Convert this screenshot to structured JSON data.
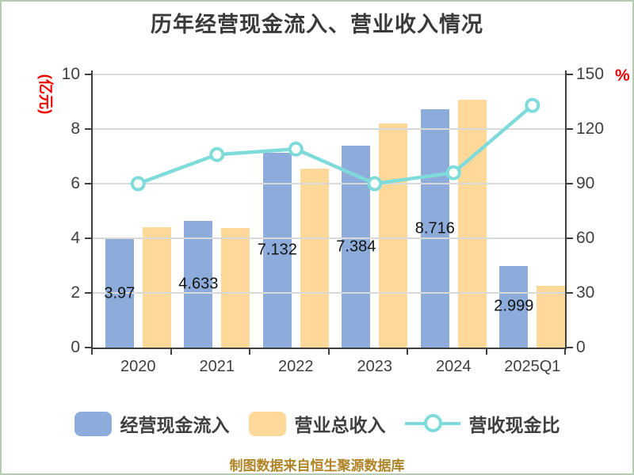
{
  "chart_data": {
    "type": "bar",
    "title": "历年经营现金流入、营业收入情况",
    "categories": [
      "2020",
      "2021",
      "2022",
      "2023",
      "2024",
      "2025Q1"
    ],
    "series": [
      {
        "name": "经营现金流入",
        "type": "bar",
        "axis": "left",
        "color": "#8dacdb",
        "values": [
          3.97,
          4.633,
          7.132,
          7.384,
          8.716,
          2.999
        ],
        "labels": [
          "3.97",
          "4.633",
          "7.132",
          "7.384",
          "8.716",
          "2.999"
        ]
      },
      {
        "name": "营业总收入",
        "type": "bar",
        "axis": "left",
        "color": "#ffd89a",
        "values": [
          4.4,
          4.37,
          6.56,
          8.21,
          9.08,
          2.26
        ]
      },
      {
        "name": "营收现金比",
        "type": "line",
        "axis": "right",
        "color": "#7fdbd9",
        "marker": "circle-white-fill",
        "values": [
          90,
          106,
          109,
          90,
          96,
          133
        ]
      }
    ],
    "left_axis": {
      "unit": "(亿元)",
      "unit_color": "#ee0000",
      "min": 0,
      "max": 10,
      "ticks": [
        0,
        2,
        4,
        6,
        8,
        10
      ]
    },
    "right_axis": {
      "unit": "%",
      "unit_color": "#ee0000",
      "min": 0,
      "max": 150,
      "ticks": [
        0,
        30,
        60,
        90,
        120,
        150
      ]
    },
    "grid": true,
    "legend_position": "bottom",
    "footer": "制图数据来自恒生聚源数据库",
    "colors": {
      "title_text": "#3a3a3a",
      "axis_line": "#3f3f3f",
      "grid_line": "#d9d9d9",
      "tick_text": "#3f3f3f",
      "data_label_text": "#141414",
      "footer_text": "#b08426"
    }
  }
}
